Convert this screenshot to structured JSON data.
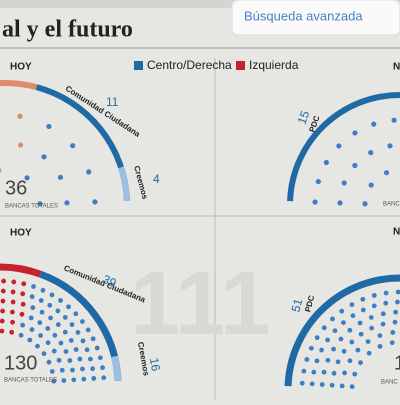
{
  "header": {
    "title": "al y el futuro"
  },
  "search": {
    "label": "Búsqueda avanzada"
  },
  "legend": [
    {
      "label": "Centro/Derecha"
    },
    {
      "label": "Izquierda"
    }
  ],
  "panels": [
    {
      "label": "HOY",
      "total": 36,
      "total_label": "BANCAS TOTALES",
      "parties": [
        {
          "name": "Comunidad Ciudadana",
          "seats": 11
        },
        {
          "name": "Creemos",
          "seats": 4
        }
      ]
    },
    {
      "label": "N",
      "total_label": "BANC",
      "parties": [
        {
          "name": "PDC",
          "seats": 15
        }
      ]
    },
    {
      "label": "HOY",
      "total": 130,
      "total_label": "BANCAS TOTALES",
      "parties": [
        {
          "name": "Comunidad Ciudadana",
          "seats": 39
        },
        {
          "name": "Creemos",
          "seats": 16
        }
      ]
    },
    {
      "label": "N",
      "total": 1,
      "total_label": "BANC",
      "parties": [
        {
          "name": "PDC",
          "seats": 51
        }
      ]
    }
  ]
}
